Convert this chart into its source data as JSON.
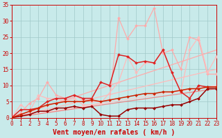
{
  "title": "",
  "xlabel": "Vent moyen/en rafales ( km/h )",
  "xlim": [
    0,
    23
  ],
  "ylim": [
    0,
    35
  ],
  "xticks": [
    0,
    1,
    2,
    3,
    4,
    5,
    6,
    7,
    8,
    9,
    10,
    11,
    12,
    13,
    14,
    15,
    16,
    17,
    18,
    19,
    20,
    21,
    22,
    23
  ],
  "yticks": [
    0,
    5,
    10,
    15,
    20,
    25,
    30,
    35
  ],
  "bg_color": "#c8eaea",
  "grid_color": "#a0c8c8",
  "series": [
    {
      "x": [
        0,
        23
      ],
      "y": [
        0,
        21
      ],
      "color": "#ffaaaa",
      "lw": 0.9,
      "marker": null
    },
    {
      "x": [
        0,
        23
      ],
      "y": [
        0,
        15
      ],
      "color": "#ffbbbb",
      "lw": 0.9,
      "marker": null
    },
    {
      "x": [
        0,
        23
      ],
      "y": [
        0,
        10
      ],
      "color": "#ffcccc",
      "lw": 0.9,
      "marker": null
    },
    {
      "x": [
        0,
        23
      ],
      "y": [
        0,
        9
      ],
      "color": "#ee8888",
      "lw": 0.9,
      "marker": null
    },
    {
      "x": [
        0,
        1,
        2,
        3,
        4,
        5,
        6,
        7,
        8,
        9,
        10,
        11,
        12,
        13,
        14,
        15,
        16,
        17,
        18,
        19,
        20,
        21,
        22,
        23
      ],
      "y": [
        0,
        1.5,
        4.5,
        6,
        11,
        7,
        6,
        7,
        5.5,
        5,
        5,
        5.5,
        31,
        24.5,
        28.5,
        28.5,
        34,
        20,
        21,
        15,
        25,
        24,
        13.5,
        13.5
      ],
      "color": "#ffaaaa",
      "lw": 0.9,
      "marker": "D",
      "ms": 2.0
    },
    {
      "x": [
        0,
        1,
        2,
        3,
        4,
        5,
        6,
        7,
        8,
        9,
        10,
        12,
        13,
        14,
        15,
        16,
        17,
        18,
        19,
        20,
        21,
        22,
        23
      ],
      "y": [
        0,
        4,
        2,
        7,
        6,
        6,
        5,
        6,
        4,
        4,
        4.5,
        11,
        19,
        14,
        17,
        17,
        21,
        14,
        8,
        21,
        25,
        14,
        19
      ],
      "color": "#ffbbbb",
      "lw": 0.9,
      "marker": "D",
      "ms": 2.0
    },
    {
      "x": [
        0,
        1,
        2,
        3,
        4,
        5,
        6,
        7,
        8,
        9,
        10,
        11,
        12,
        13,
        14,
        15,
        16,
        17,
        18,
        19,
        20,
        21,
        22,
        23
      ],
      "y": [
        0,
        2.5,
        2.5,
        3,
        5,
        6,
        6,
        7,
        6,
        6,
        11,
        10,
        19.5,
        19,
        17,
        17.5,
        17,
        21,
        14,
        8,
        6,
        10,
        9.5,
        9.5
      ],
      "color": "#dd2222",
      "lw": 1.1,
      "marker": "D",
      "ms": 2.0
    },
    {
      "x": [
        0,
        1,
        2,
        3,
        4,
        5,
        6,
        7,
        8,
        9,
        10,
        11,
        12,
        13,
        14,
        15,
        16,
        17,
        18,
        19,
        20,
        21,
        22,
        23
      ],
      "y": [
        0,
        0.5,
        1,
        2,
        2,
        3,
        3,
        3.5,
        3,
        3.5,
        1,
        0.5,
        0.5,
        2.5,
        3,
        3,
        3,
        3.5,
        4,
        4,
        5,
        6,
        9,
        9
      ],
      "color": "#990000",
      "lw": 1.1,
      "marker": "D",
      "ms": 2.0
    },
    {
      "x": [
        0,
        1,
        2,
        3,
        4,
        5,
        6,
        7,
        8,
        9,
        10,
        11,
        12,
        13,
        14,
        15,
        16,
        17,
        18,
        19,
        20,
        21,
        22,
        23
      ],
      "y": [
        0,
        1,
        2,
        3,
        4,
        4.5,
        5,
        5,
        5,
        5.5,
        5,
        5.5,
        6,
        6.5,
        7,
        7.5,
        7.5,
        8,
        8,
        8.5,
        9,
        9,
        9.5,
        9.5
      ],
      "color": "#cc2200",
      "lw": 1.1,
      "marker": "D",
      "ms": 2.0
    }
  ],
  "xlabel_fontsize": 7,
  "tick_fontsize": 5.5
}
